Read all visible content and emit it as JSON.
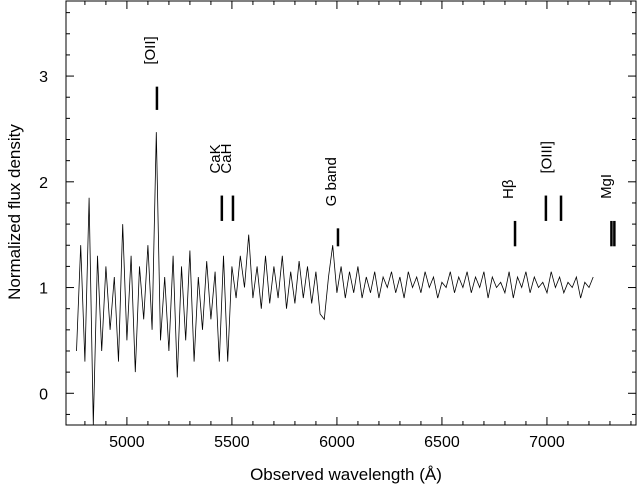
{
  "chart_data": {
    "type": "line",
    "xlabel": "Observed wavelength (Å)",
    "ylabel": "Normalized flux density",
    "xlim": [
      4710,
      7424
    ],
    "ylim": [
      -0.3,
      3.71
    ],
    "xticks": [
      5000,
      5500,
      6000,
      6500,
      7000
    ],
    "yticks": [
      0,
      1,
      2,
      3
    ],
    "xminorticks": [
      4800,
      4900,
      5100,
      5200,
      5300,
      5400,
      5600,
      5700,
      5800,
      5900,
      6100,
      6200,
      6300,
      6400,
      6600,
      6700,
      6800,
      6900,
      7100,
      7200,
      7300,
      7400
    ],
    "yminorticks": [
      -0.2,
      0.2,
      0.4,
      0.6,
      0.8,
      1.2,
      1.4,
      1.6,
      1.8,
      2.2,
      2.4,
      2.6,
      2.8,
      3.2,
      3.4,
      3.6
    ],
    "color": "#000000",
    "x": [
      4760,
      4780,
      4800,
      4820,
      4840,
      4860,
      4880,
      4900,
      4920,
      4940,
      4960,
      4980,
      5000,
      5020,
      5040,
      5060,
      5080,
      5100,
      5120,
      5140,
      5160,
      5180,
      5200,
      5220,
      5240,
      5260,
      5280,
      5300,
      5320,
      5340,
      5360,
      5380,
      5400,
      5420,
      5440,
      5460,
      5480,
      5500,
      5520,
      5540,
      5560,
      5580,
      5600,
      5620,
      5640,
      5660,
      5680,
      5700,
      5720,
      5740,
      5760,
      5780,
      5800,
      5820,
      5840,
      5860,
      5880,
      5900,
      5920,
      5940,
      5960,
      5980,
      6000,
      6020,
      6040,
      6060,
      6080,
      6100,
      6120,
      6140,
      6160,
      6180,
      6200,
      6220,
      6240,
      6260,
      6280,
      6300,
      6320,
      6340,
      6360,
      6380,
      6400,
      6420,
      6440,
      6460,
      6480,
      6500,
      6520,
      6540,
      6560,
      6580,
      6600,
      6620,
      6640,
      6660,
      6680,
      6700,
      6720,
      6740,
      6760,
      6780,
      6800,
      6820,
      6840,
      6860,
      6880,
      6900,
      6920,
      6940,
      6960,
      6980,
      7000,
      7020,
      7040,
      7060,
      7080,
      7100,
      7120,
      7140,
      7160,
      7180,
      7200,
      7220
    ],
    "values": [
      0.4,
      1.4,
      0.3,
      1.85,
      -0.3,
      1.3,
      0.4,
      1.2,
      0.6,
      1.1,
      0.3,
      1.6,
      0.5,
      1.3,
      0.2,
      1.2,
      0.7,
      1.4,
      0.6,
      2.47,
      0.5,
      1.1,
      0.4,
      1.3,
      0.15,
      1.2,
      0.5,
      1.35,
      0.3,
      1.1,
      0.6,
      1.25,
      0.7,
      1.15,
      0.3,
      1.3,
      0.3,
      1.2,
      0.9,
      1.3,
      1.0,
      1.5,
      0.9,
      1.2,
      0.8,
      1.3,
      0.85,
      1.2,
      0.9,
      1.3,
      0.8,
      1.15,
      0.85,
      1.25,
      0.9,
      1.2,
      0.85,
      1.15,
      0.75,
      0.7,
      1.1,
      1.4,
      0.95,
      1.2,
      0.9,
      1.15,
      0.95,
      1.2,
      0.9,
      1.1,
      0.95,
      1.15,
      0.9,
      1.1,
      1.0,
      1.15,
      0.95,
      1.1,
      0.9,
      1.15,
      1.0,
      1.1,
      0.95,
      1.15,
      1.0,
      1.1,
      0.9,
      1.05,
      1.0,
      1.15,
      0.95,
      1.1,
      1.0,
      1.15,
      0.95,
      1.1,
      1.0,
      1.15,
      0.9,
      1.1,
      1.0,
      1.05,
      0.95,
      1.15,
      0.9,
      1.1,
      1.0,
      1.15,
      0.95,
      1.1,
      1.0,
      1.05,
      0.95,
      1.15,
      1.0,
      1.1,
      0.95,
      1.05,
      1.0,
      1.1,
      0.9,
      1.05,
      1.0,
      1.1
    ],
    "annotations": [
      {
        "label": "[OII]",
        "x": [
          5143
        ],
        "ylim": [
          2.68,
          2.9
        ]
      },
      {
        "label": "CaK",
        "x": [
          5452
        ],
        "ylim": [
          1.63,
          1.87
        ]
      },
      {
        "label": "CaH",
        "x": [
          5505
        ],
        "ylim": [
          1.63,
          1.87
        ]
      },
      {
        "label": "G band",
        "x": [
          6005
        ],
        "ylim": [
          1.39,
          1.56
        ]
      },
      {
        "label": "Hβ",
        "x": [
          6848
        ],
        "ylim": [
          1.39,
          1.63
        ]
      },
      {
        "label": "[OIII]",
        "x": [
          6995,
          7067
        ],
        "ylim": [
          1.63,
          1.87
        ]
      },
      {
        "label": "MgI",
        "x": [
          7307,
          7321
        ],
        "ylim": [
          1.39,
          1.63
        ]
      }
    ]
  }
}
